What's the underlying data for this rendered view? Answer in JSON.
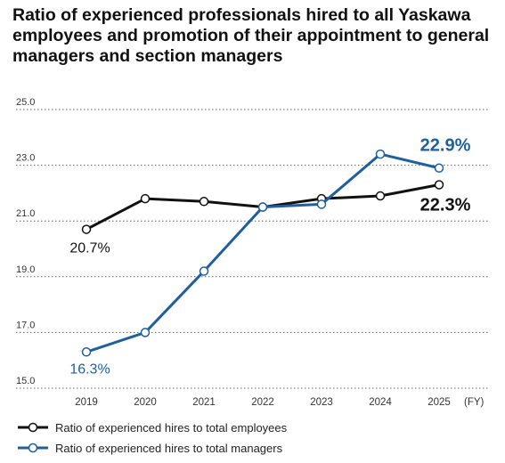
{
  "title": "Ratio of experienced professionals hired to all Yaskawa employees and promotion of their appointment to general managers and section managers",
  "chart_data": {
    "type": "line",
    "x_unit": "(FY)",
    "categories": [
      "2019",
      "2020",
      "2021",
      "2022",
      "2023",
      "2024",
      "2025"
    ],
    "ylim": [
      15.0,
      25.0
    ],
    "yticks": [
      "15.0",
      "17.0",
      "19.0",
      "21.0",
      "23.0",
      "25.0"
    ],
    "grid": "dotted horizontal",
    "legend_position": "bottom",
    "series": [
      {
        "name": "Ratio of experienced hires to total employees",
        "color": "#111111",
        "values": [
          20.7,
          21.8,
          21.7,
          21.5,
          21.8,
          21.9,
          22.3
        ],
        "labels": [
          {
            "index": 0,
            "text": "20.7%"
          },
          {
            "index": 6,
            "text": "22.3%"
          }
        ]
      },
      {
        "name": "Ratio of experienced hires to total managers",
        "color": "#1f5f9e",
        "values": [
          16.3,
          17.0,
          19.2,
          21.5,
          21.6,
          23.4,
          22.9
        ],
        "labels": [
          {
            "index": 0,
            "text": "16.3%"
          },
          {
            "index": 6,
            "text": "22.9%"
          }
        ]
      }
    ]
  }
}
